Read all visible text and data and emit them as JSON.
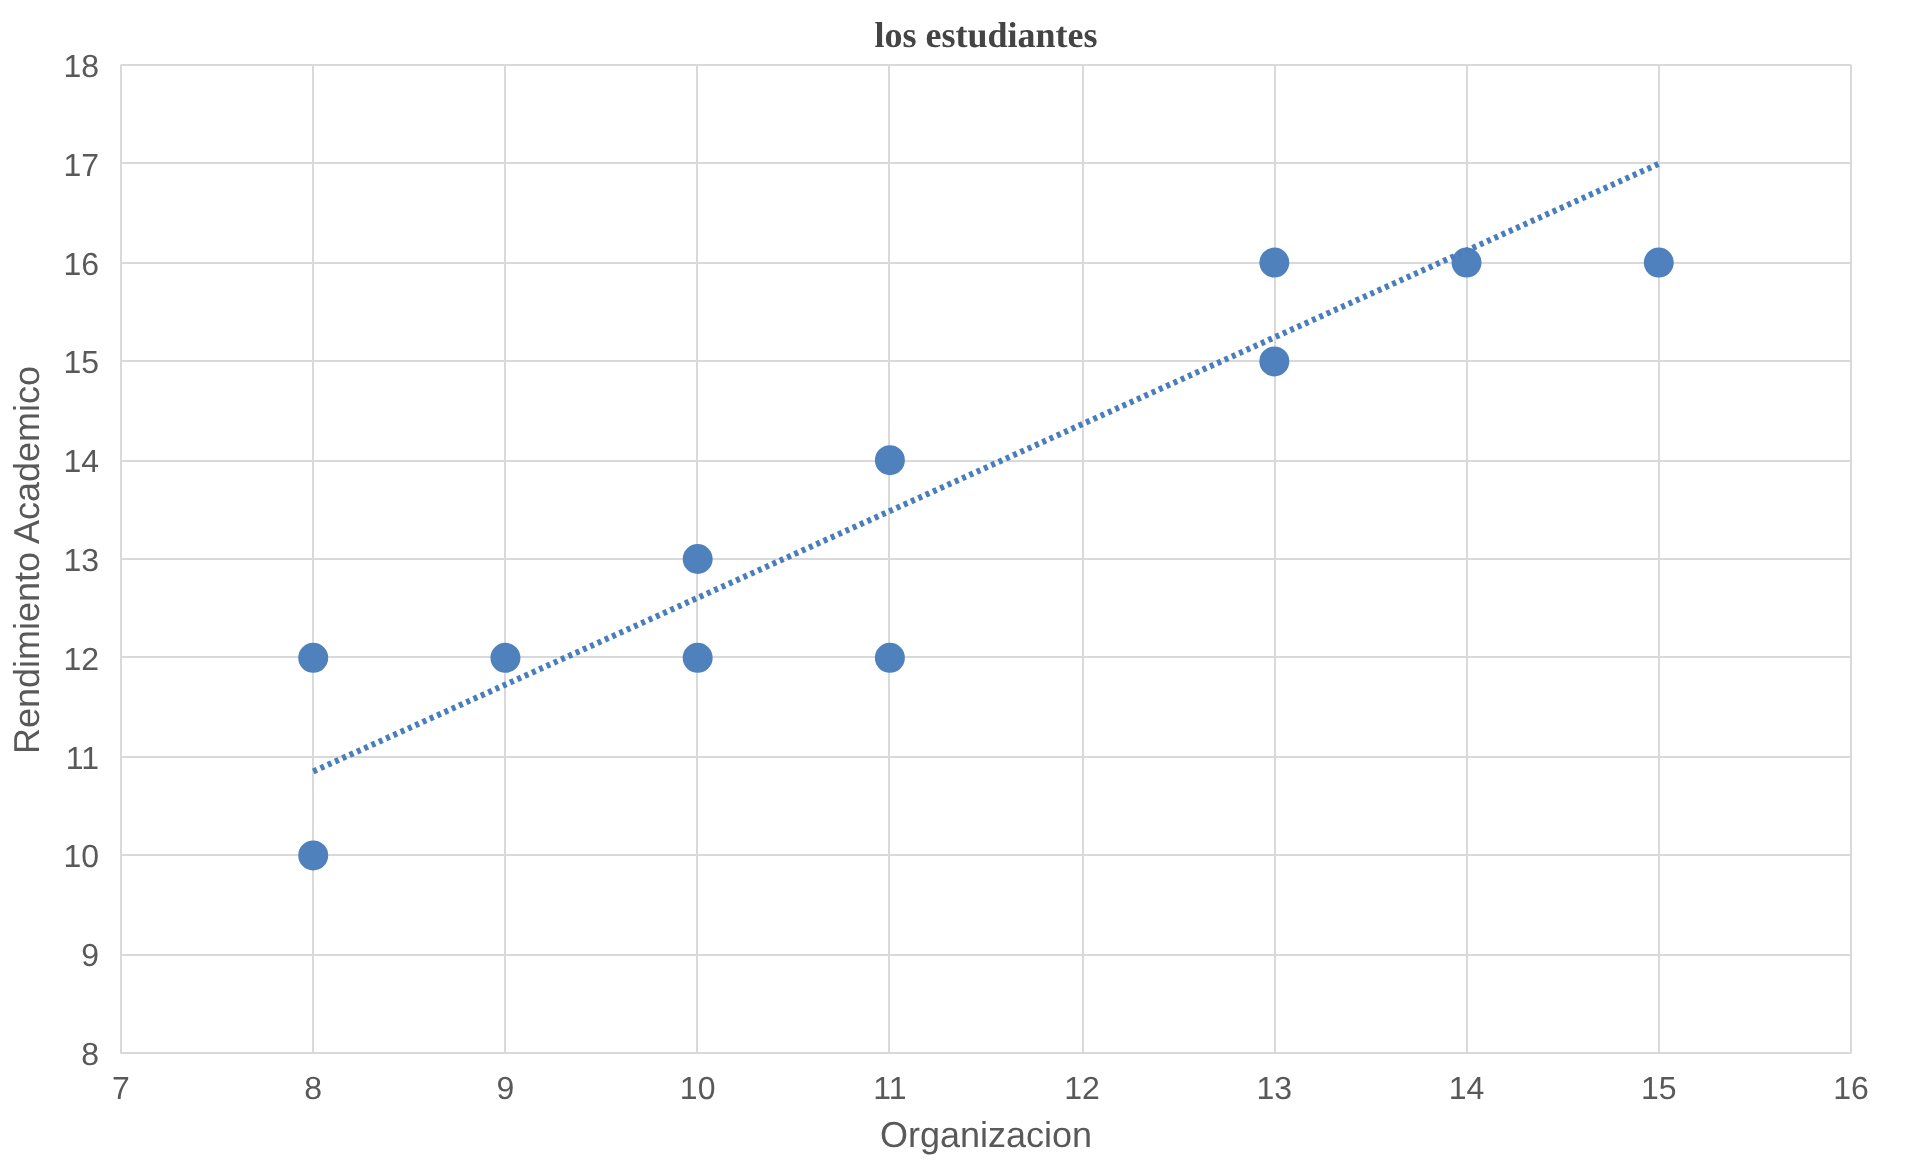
{
  "chart_data": {
    "type": "scatter",
    "title": "los estudiantes",
    "xlabel": "Organizacion",
    "ylabel": "Rendimiento Academico",
    "xlim": [
      7,
      16
    ],
    "ylim": [
      8,
      18
    ],
    "xticks": [
      7,
      8,
      9,
      10,
      11,
      12,
      13,
      14,
      15,
      16
    ],
    "yticks": [
      8,
      9,
      10,
      11,
      12,
      13,
      14,
      15,
      16,
      17,
      18
    ],
    "grid": true,
    "marker": "circle",
    "series": [
      {
        "color": "#4f81bd",
        "x": [
          8,
          8,
          9,
          10,
          10,
          11,
          11,
          13,
          13,
          14,
          15
        ],
        "values": [
          12,
          10,
          12,
          13,
          12,
          14,
          12,
          16,
          15,
          16,
          16
        ]
      },
      {
        "type": "line",
        "color": "#4a7ebb",
        "line_style": "dotted",
        "marker": "none",
        "x": [
          8,
          15
        ],
        "values": [
          10.85,
          17.0
        ]
      }
    ]
  }
}
